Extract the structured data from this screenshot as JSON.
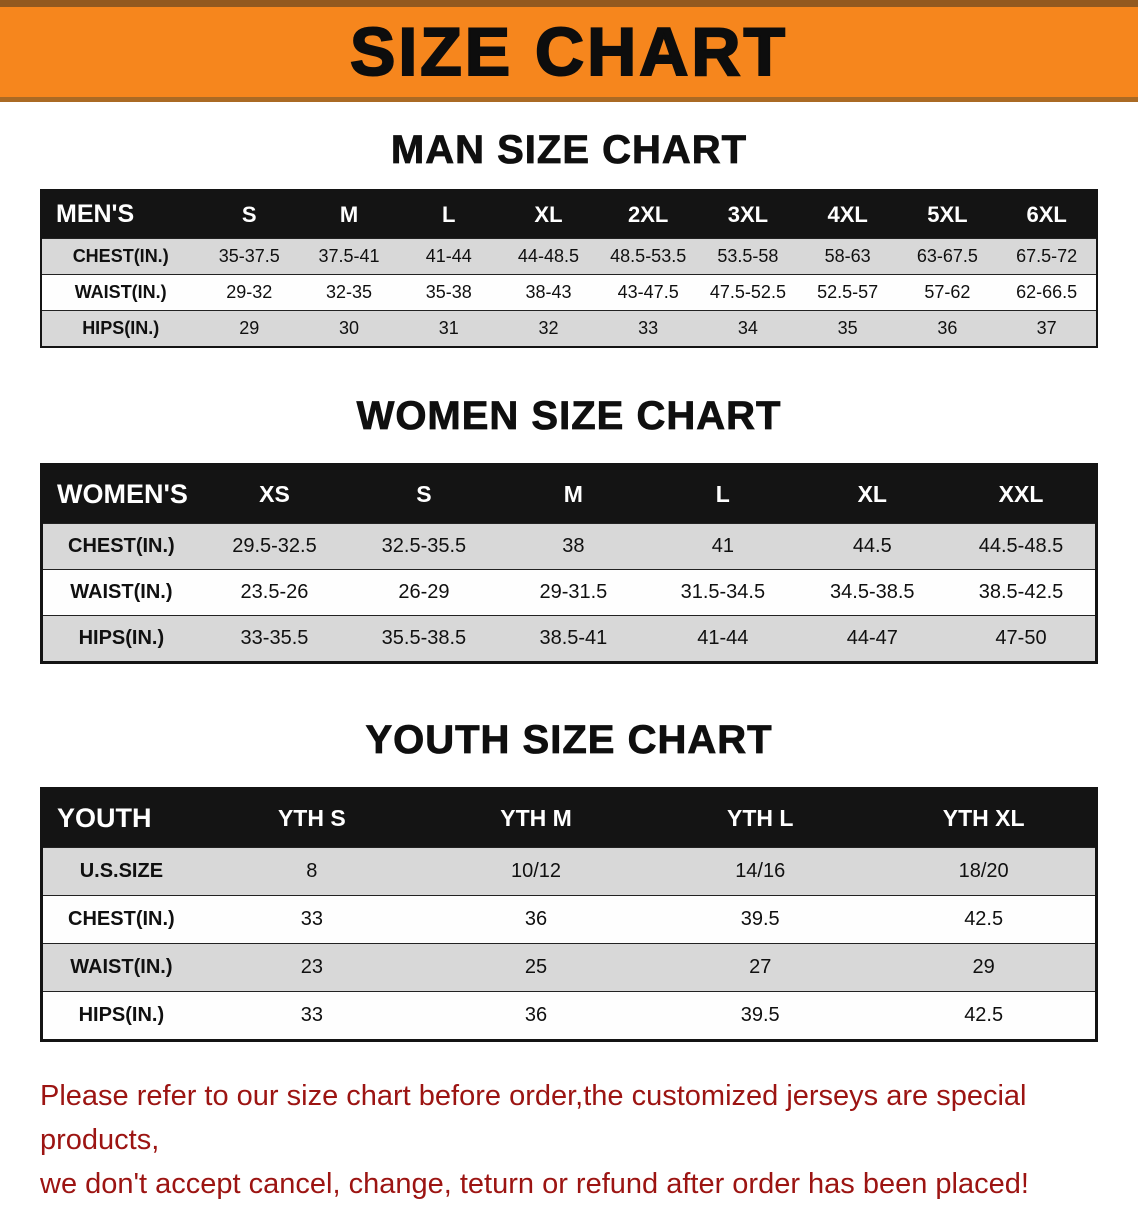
{
  "banner": {
    "title": "SIZE CHART"
  },
  "colors": {
    "banner_bg": "#f6861d",
    "banner_edge_top": "#92591f",
    "banner_edge_bottom": "#aa6a24",
    "header_bg": "#141414",
    "table_frame": "#141414",
    "row_alt": "#d8d8d8",
    "footer_text": "#9c1412"
  },
  "sections": [
    {
      "id": "men",
      "title": "MAN SIZE CHART",
      "corner": "MEN'S",
      "columns": [
        "S",
        "M",
        "L",
        "XL",
        "2XL",
        "3XL",
        "4XL",
        "5XL",
        "6XL"
      ],
      "rows": [
        {
          "label": "CHEST(IN.)",
          "values": [
            "35-37.5",
            "37.5-41",
            "41-44",
            "44-48.5",
            "48.5-53.5",
            "53.5-58",
            "58-63",
            "63-67.5",
            "67.5-72"
          ]
        },
        {
          "label": "WAIST(IN.)",
          "values": [
            "29-32",
            "32-35",
            "35-38",
            "38-43",
            "43-47.5",
            "47.5-52.5",
            "52.5-57",
            "57-62",
            "62-66.5"
          ]
        },
        {
          "label": "HIPS(IN.)",
          "values": [
            "29",
            "30",
            "31",
            "32",
            "33",
            "34",
            "35",
            "36",
            "37"
          ]
        }
      ]
    },
    {
      "id": "women",
      "title": "WOMEN SIZE CHART",
      "corner": "WOMEN'S",
      "columns": [
        "XS",
        "S",
        "M",
        "L",
        "XL",
        "XXL"
      ],
      "rows": [
        {
          "label": "CHEST(IN.)",
          "values": [
            "29.5-32.5",
            "32.5-35.5",
            "38",
            "41",
            "44.5",
            "44.5-48.5"
          ]
        },
        {
          "label": "WAIST(IN.)",
          "values": [
            "23.5-26",
            "26-29",
            "29-31.5",
            "31.5-34.5",
            "34.5-38.5",
            "38.5-42.5"
          ]
        },
        {
          "label": "HIPS(IN.)",
          "values": [
            "33-35.5",
            "35.5-38.5",
            "38.5-41",
            "41-44",
            "44-47",
            "47-50"
          ]
        }
      ]
    },
    {
      "id": "youth",
      "title": "YOUTH SIZE CHART",
      "corner": "YOUTH",
      "columns": [
        "YTH S",
        "YTH M",
        "YTH L",
        "YTH XL"
      ],
      "rows": [
        {
          "label": "U.S.SIZE",
          "values": [
            "8",
            "10/12",
            "14/16",
            "18/20"
          ]
        },
        {
          "label": "CHEST(IN.)",
          "values": [
            "33",
            "36",
            "39.5",
            "42.5"
          ]
        },
        {
          "label": "WAIST(IN.)",
          "values": [
            "23",
            "25",
            "27",
            "29"
          ]
        },
        {
          "label": "HIPS(IN.)",
          "values": [
            "33",
            "36",
            "39.5",
            "42.5"
          ]
        }
      ]
    }
  ],
  "footer": {
    "line1": "Please refer to our size chart before order,the customized jerseys are special products,",
    "line2": "we don't accept cancel, change, teturn or refund after order has been placed!"
  }
}
